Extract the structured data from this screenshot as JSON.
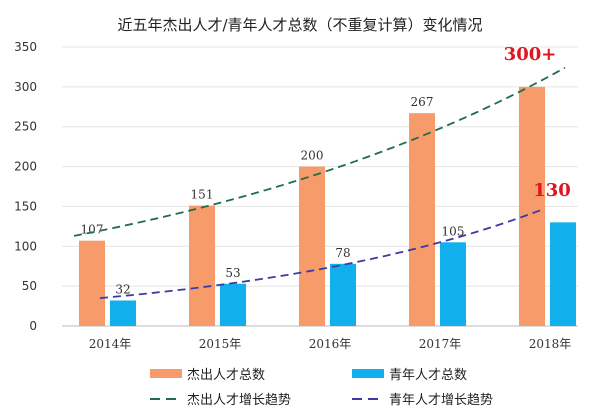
{
  "chart_data": {
    "type": "bar",
    "title": "近五年杰出人才/青年人才总数（不重复计算）变化情况",
    "categories": [
      "2014年",
      "2015年",
      "2016年",
      "2017年",
      "2018年"
    ],
    "ylim": [
      0,
      350
    ],
    "yticks": [
      0,
      50,
      100,
      150,
      200,
      250,
      300,
      350
    ],
    "grid": true,
    "legend_placement": "bottom",
    "series": [
      {
        "name": "杰出人才总数",
        "values": [
          107,
          151,
          200,
          267,
          300
        ],
        "labels": [
          "107",
          "151",
          "200",
          "267",
          ""
        ],
        "color": "#F79B6A"
      },
      {
        "name": "青年人才总数",
        "values": [
          32,
          53,
          78,
          105,
          130
        ],
        "labels": [
          "32",
          "53",
          "78",
          "105",
          ""
        ],
        "color": "#11B0EC"
      }
    ],
    "trends": [
      {
        "name": "杰出人才增长趋势",
        "color": "#1E6E4A"
      },
      {
        "name": "青年人才增长趋势",
        "color": "#3B3AA8"
      }
    ],
    "annotations": [
      {
        "text": "300+",
        "color": "#E0141E"
      },
      {
        "text": "130",
        "color": "#E0141E"
      }
    ]
  }
}
